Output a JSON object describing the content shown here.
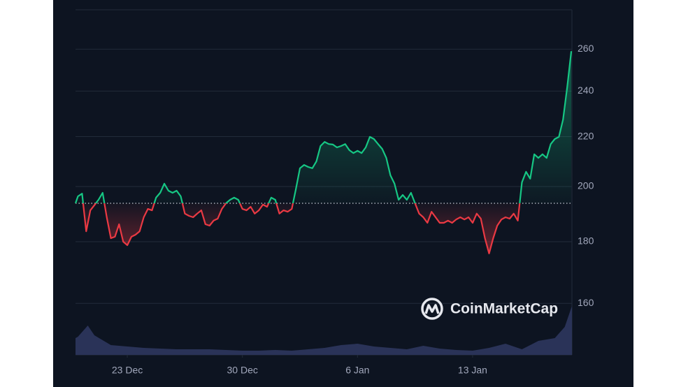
{
  "chart_data": {
    "type": "line",
    "log_scale": true,
    "grid": true,
    "watermark": "CoinMarketCap",
    "baseline": 193.7,
    "up_color": "#16c784",
    "down_color": "#ea3943",
    "xlim": [
      -0.15,
      30.04
    ],
    "xticks": [
      {
        "value": 3,
        "label": "23 Dec"
      },
      {
        "value": 10,
        "label": "30 Dec"
      },
      {
        "value": 17,
        "label": "6 Jan"
      },
      {
        "value": 24,
        "label": "13 Jan"
      }
    ],
    "ylim": [
      145,
      280.3
    ],
    "yticks": [
      160,
      180,
      200,
      220,
      240,
      260
    ],
    "x": [
      -0.15,
      0,
      0.25,
      0.5,
      0.75,
      1,
      1.25,
      1.5,
      1.75,
      2,
      2.25,
      2.5,
      2.75,
      3,
      3.25,
      3.5,
      3.75,
      4,
      4.25,
      4.5,
      4.75,
      5,
      5.25,
      5.5,
      5.75,
      6,
      6.25,
      6.5,
      6.75,
      7,
      7.25,
      7.5,
      7.75,
      8,
      8.25,
      8.5,
      8.75,
      9,
      9.25,
      9.5,
      9.75,
      10,
      10.25,
      10.5,
      10.75,
      11,
      11.25,
      11.5,
      11.75,
      12,
      12.25,
      12.5,
      12.75,
      13,
      13.25,
      13.5,
      13.75,
      14,
      14.25,
      14.5,
      14.75,
      15,
      15.25,
      15.5,
      15.75,
      16,
      16.25,
      16.5,
      16.75,
      17,
      17.25,
      17.5,
      17.75,
      18,
      18.25,
      18.5,
      18.75,
      19,
      19.25,
      19.5,
      19.75,
      20,
      20.25,
      20.5,
      20.75,
      21,
      21.25,
      21.5,
      21.75,
      22,
      22.25,
      22.5,
      22.75,
      23,
      23.25,
      23.5,
      23.75,
      24,
      24.25,
      24.5,
      24.75,
      25,
      25.25,
      25.5,
      25.75,
      26,
      26.25,
      26.5,
      26.75,
      27,
      27.25,
      27.5,
      27.75,
      28,
      28.25,
      28.5,
      28.75,
      29,
      29.25,
      29.5,
      29.75,
      30
    ],
    "values": [
      193.7,
      196.3,
      197.3,
      183.6,
      191.1,
      193.0,
      195.0,
      197.6,
      188.6,
      181.2,
      181.7,
      186.1,
      180.0,
      178.8,
      181.7,
      182.4,
      183.6,
      188.6,
      191.6,
      191.1,
      195.8,
      197.6,
      201.1,
      198.4,
      197.6,
      198.4,
      196.3,
      189.9,
      189.1,
      188.6,
      189.9,
      191.1,
      186.1,
      185.6,
      187.4,
      188.1,
      191.6,
      193.7,
      195.0,
      195.8,
      195.0,
      191.6,
      191.1,
      192.4,
      189.9,
      191.1,
      193.2,
      192.4,
      195.8,
      195.0,
      189.9,
      191.1,
      190.6,
      191.6,
      198.9,
      207.1,
      208.4,
      207.6,
      207.1,
      209.8,
      216.1,
      217.8,
      216.9,
      216.7,
      215.5,
      216.1,
      216.9,
      214.4,
      213.2,
      214.1,
      213.2,
      215.5,
      219.9,
      219.0,
      216.9,
      214.9,
      211.2,
      204.3,
      201.1,
      195.0,
      196.8,
      195.0,
      197.6,
      193.7,
      189.9,
      188.6,
      186.6,
      190.6,
      188.6,
      186.6,
      186.6,
      187.4,
      186.6,
      187.8,
      188.6,
      187.8,
      188.6,
      186.6,
      189.9,
      188.1,
      181.2,
      176.0,
      181.2,
      185.6,
      187.8,
      188.6,
      188.1,
      189.9,
      187.4,
      201.6,
      205.7,
      203.0,
      212.7,
      211.2,
      212.7,
      211.2,
      216.9,
      219.0,
      219.9,
      227.3,
      241.7,
      259.0
    ],
    "volume": {
      "color": "#2a3358",
      "x": [
        -0.15,
        0,
        0.6,
        1,
        2,
        3,
        4,
        5,
        6,
        7,
        8,
        9,
        10,
        11,
        12,
        13,
        14,
        15,
        16,
        17,
        18,
        19,
        20,
        21,
        22,
        23,
        24,
        25,
        26,
        27,
        28,
        29,
        29.6,
        30.04
      ],
      "values": [
        24,
        26,
        42,
        28,
        14,
        12,
        10,
        9,
        8,
        8,
        8,
        7,
        6,
        6,
        7,
        6,
        8,
        10,
        14,
        16,
        12,
        10,
        8,
        13,
        9,
        7,
        6,
        10,
        16,
        8,
        20,
        24,
        40,
        70
      ]
    }
  }
}
